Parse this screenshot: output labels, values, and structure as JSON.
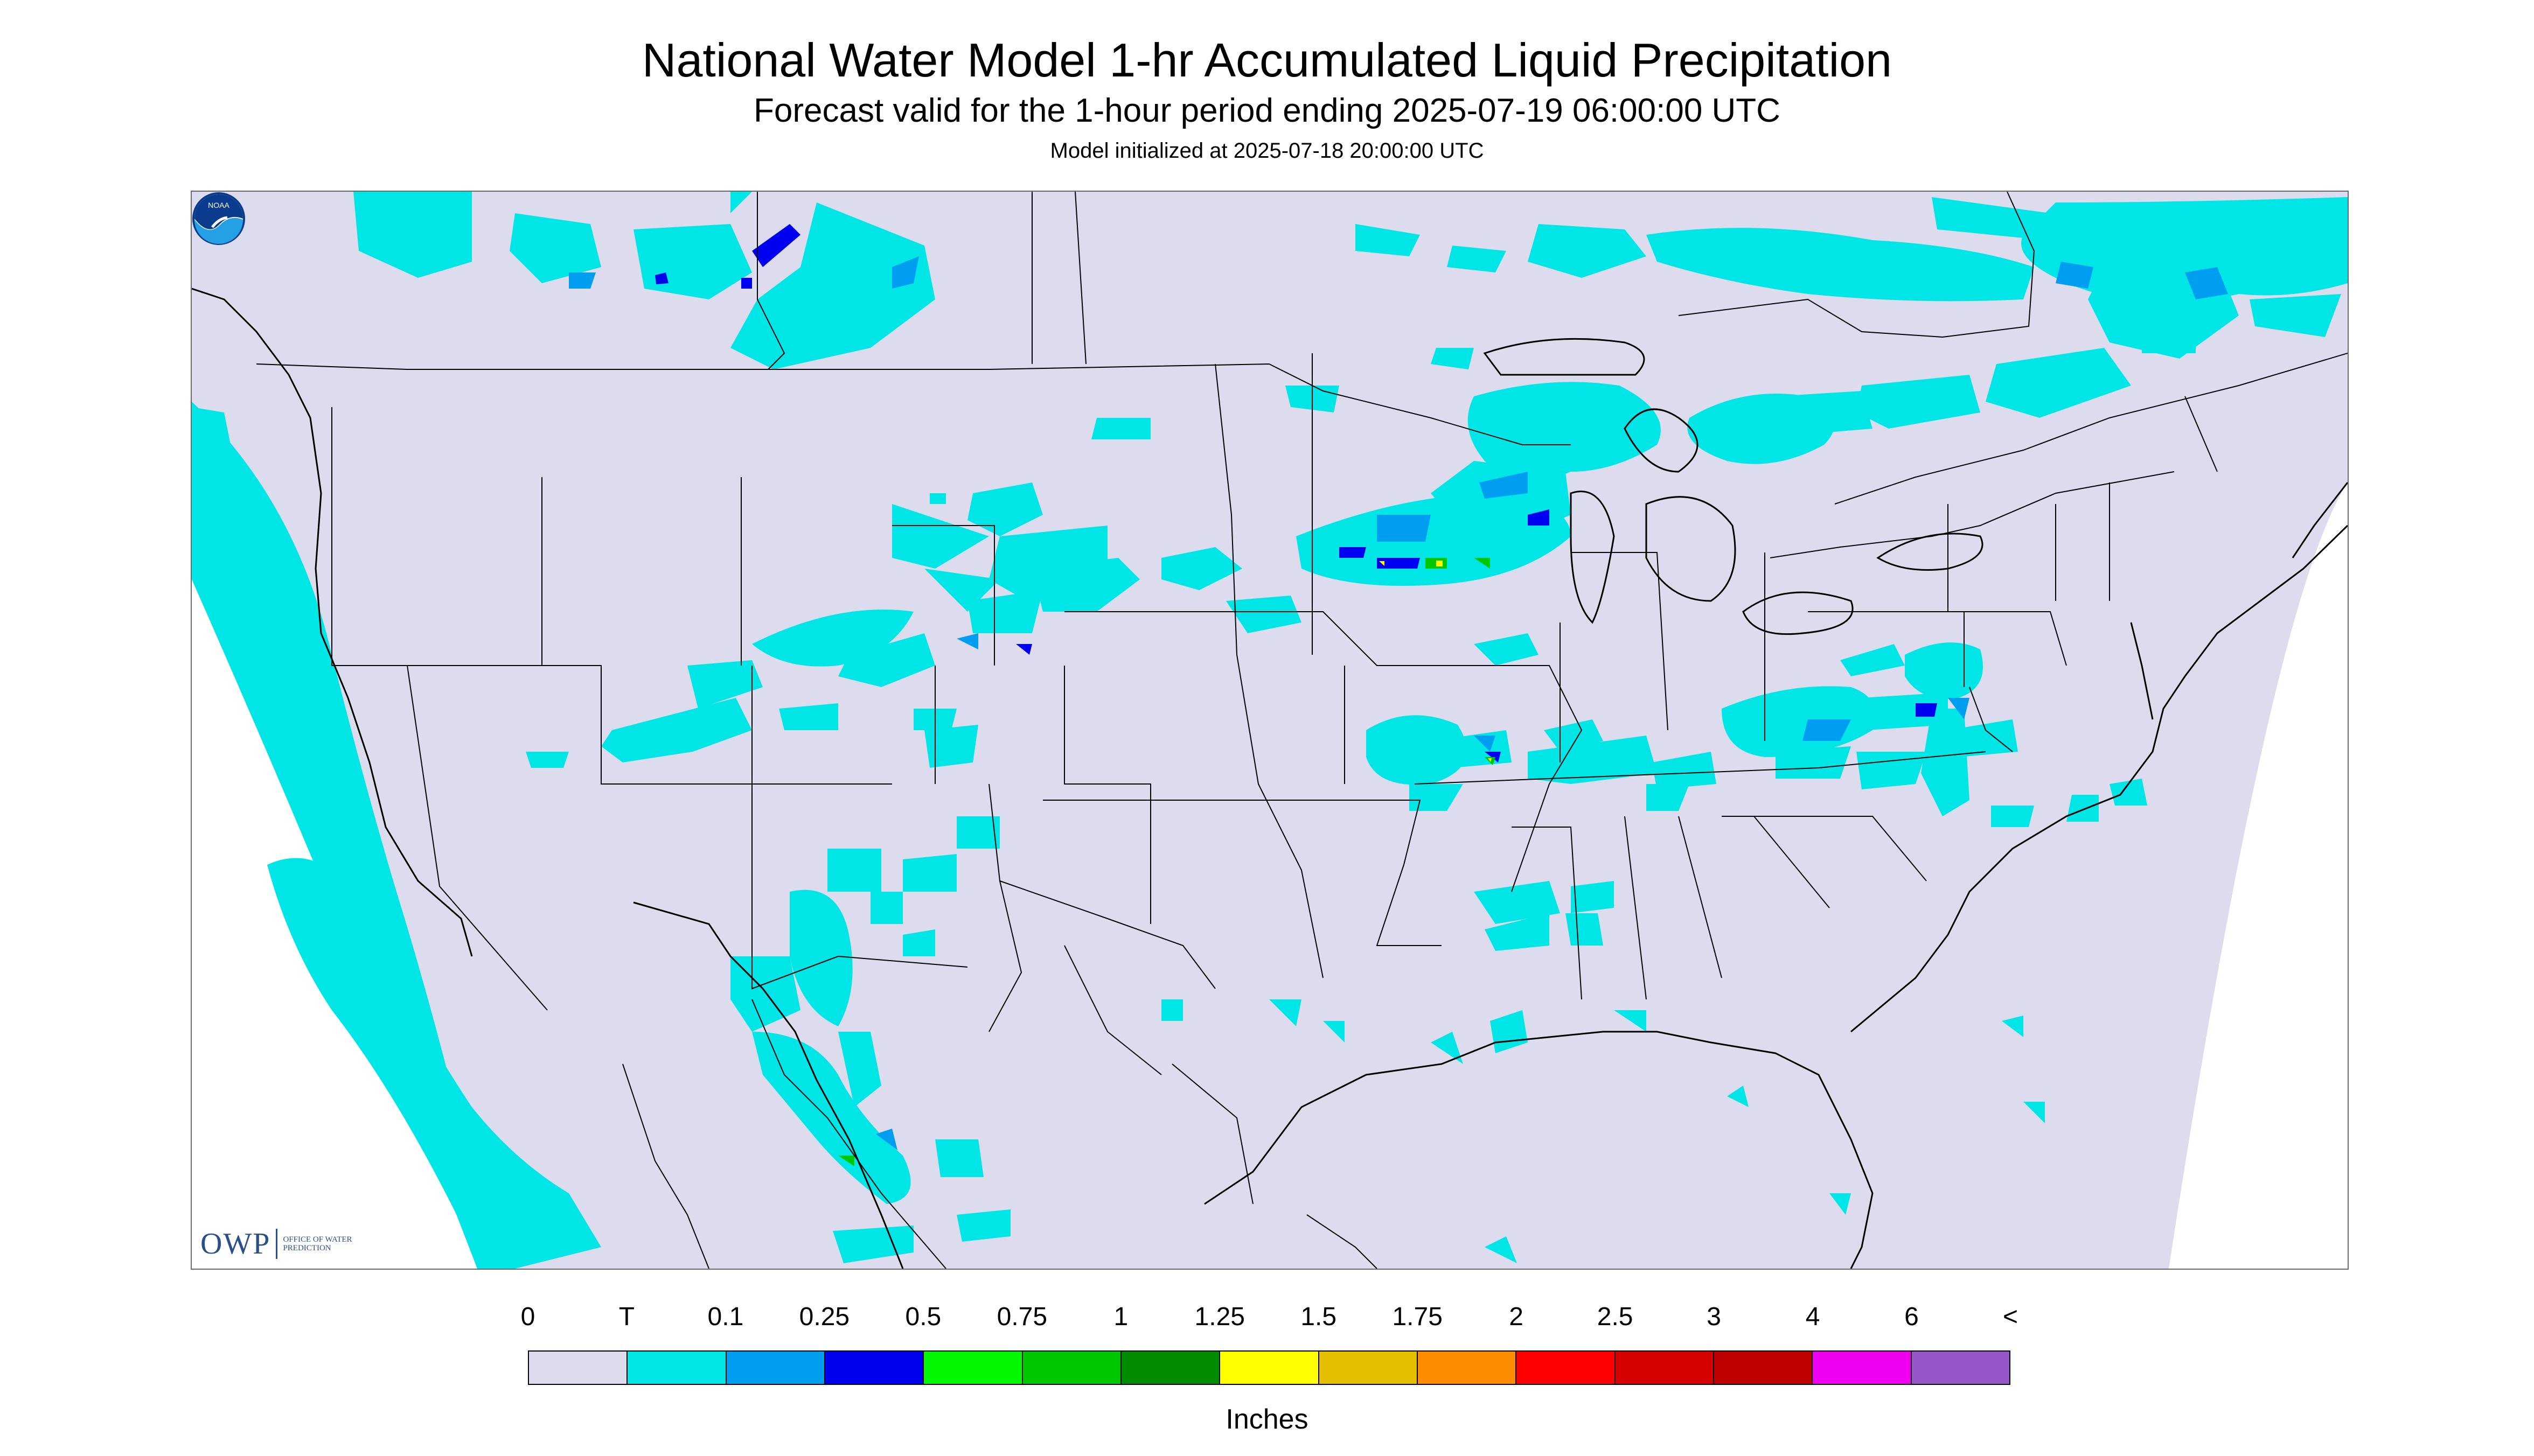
{
  "header": {
    "title": "National Water Model 1-hr Accumulated Liquid Precipitation",
    "subtitle": "Forecast valid for the 1-hour period ending 2025-07-19 06:00:00 UTC",
    "init": "Model initialized at 2025-07-18 20:00:00 UTC"
  },
  "logos": {
    "owp_word": "OWP",
    "owp_sub": "OFFICE OF WATER PREDICTION",
    "noaa": "NOAA"
  },
  "legend": {
    "labels": [
      "0",
      "T",
      "0.1",
      "0.25",
      "0.5",
      "0.75",
      "1",
      "1.25",
      "1.5",
      "1.75",
      "2",
      "2.5",
      "3",
      "4",
      "6",
      "<"
    ],
    "colors": [
      "#dcdcee",
      "#00e6e6",
      "#009ef0",
      "#0000f0",
      "#00f800",
      "#00c800",
      "#008c00",
      "#ffff00",
      "#e6be00",
      "#ff8c00",
      "#ff0000",
      "#d70000",
      "#bd0000",
      "#f000f0",
      "#9656c8"
    ],
    "units": "Inches"
  },
  "map": {
    "background_color": "#dcdcee",
    "trace_color": "#00e6e6",
    "light_color": "#009ef0",
    "moderate_color": "#0000f0",
    "heavy_color": "#00c800",
    "intense_color": "#ffff00"
  }
}
